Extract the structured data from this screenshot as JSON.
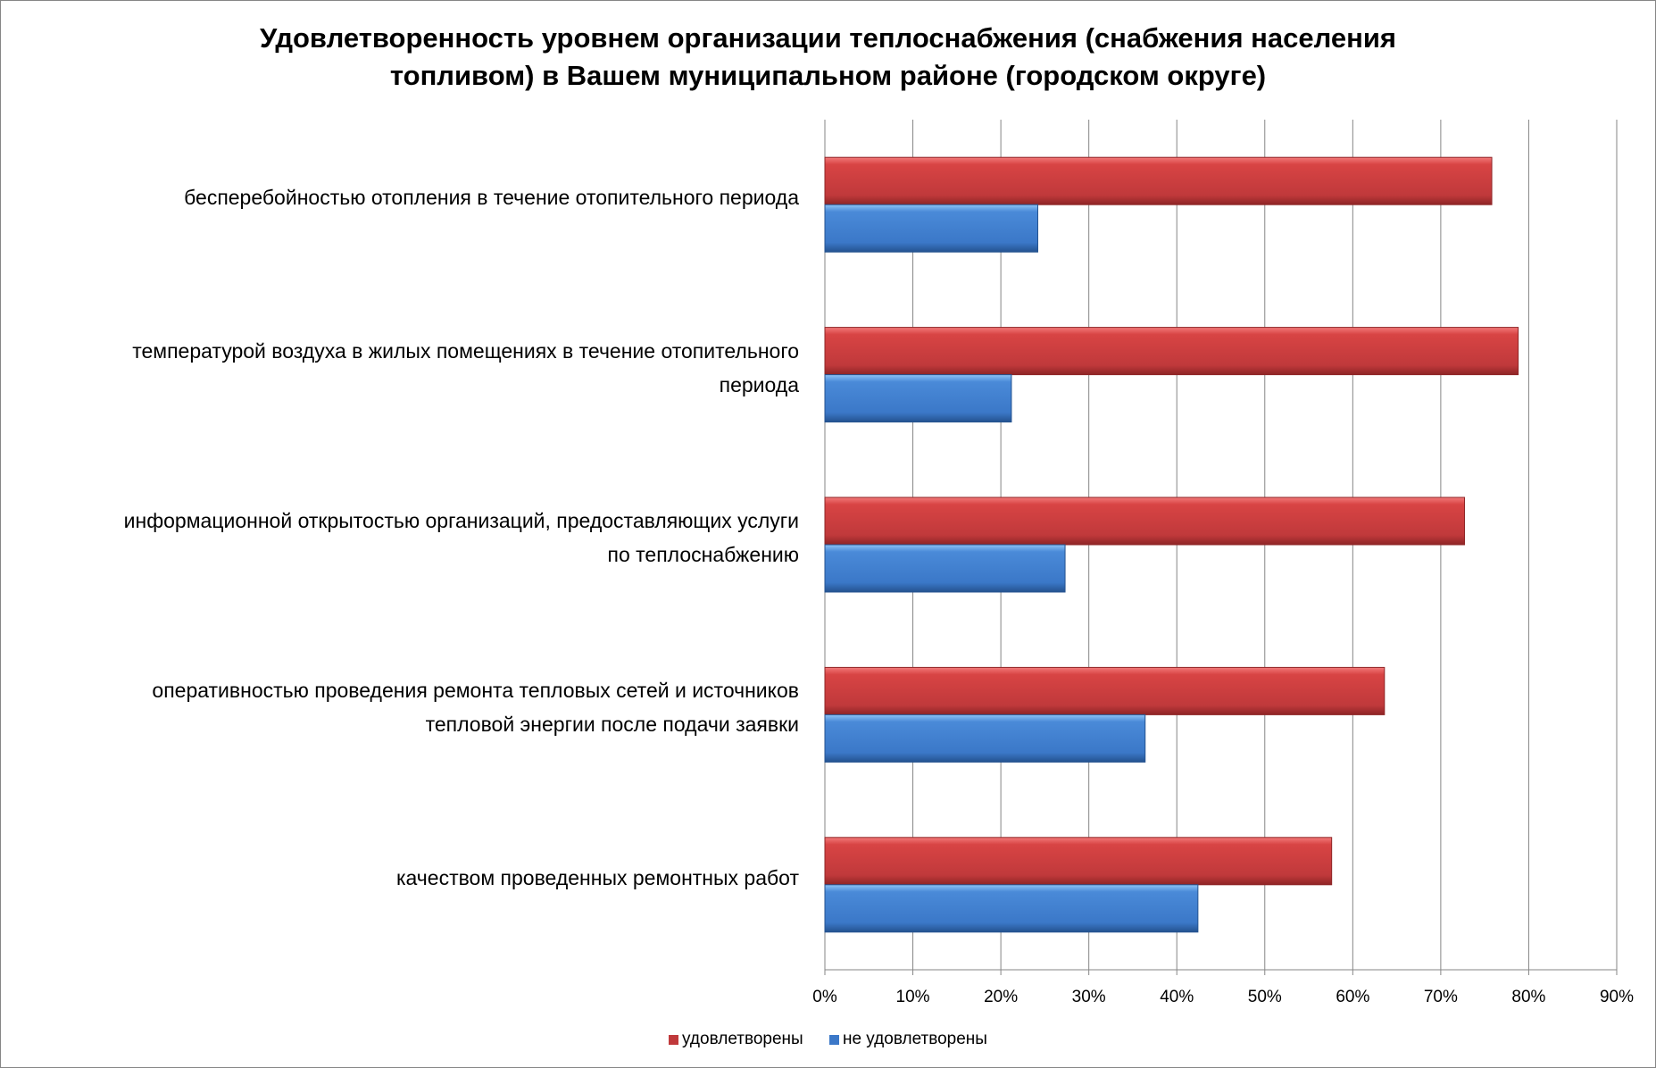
{
  "chart_data": {
    "type": "bar",
    "orientation": "horizontal",
    "title": "Удовлетворенность уровнем организации теплоснабжения (снабжения населения топливом) в Вашем муниципальном районе (городском округе)",
    "title_lines": [
      "Удовлетворенность уровнем организации теплоснабжения (снабжения населения",
      "топливом) в Вашем муниципальном районе (городском округе)"
    ],
    "categories": [
      [
        "бесперебойностью  отопления в течение отопительного периода"
      ],
      [
        "температурой  воздуха в жилых помещениях в течение отопительного",
        "периода"
      ],
      [
        "информационной открытостью  организаций, предоставляющих услуги",
        "по теплоснабжению"
      ],
      [
        "оперативностью проведения ремонта тепловых сетей и источников",
        "тепловой энергии после подачи заявки"
      ],
      [
        "качеством  проведенных ремонтных работ"
      ]
    ],
    "series": [
      {
        "name": "удовлетворены",
        "color": "#c0393b",
        "values": [
          75.8,
          78.8,
          72.7,
          63.6,
          57.6
        ]
      },
      {
        "name": "не удовлетворены",
        "color": "#3b78c8",
        "values": [
          24.2,
          21.2,
          27.3,
          36.4,
          42.4
        ]
      }
    ],
    "xlim": [
      0,
      90
    ],
    "xticks": [
      "0%",
      "10%",
      "20%",
      "30%",
      "40%",
      "50%",
      "60%",
      "70%",
      "80%",
      "90%"
    ],
    "grid": true,
    "legend": "bottom",
    "xlabel": "",
    "ylabel": ""
  }
}
